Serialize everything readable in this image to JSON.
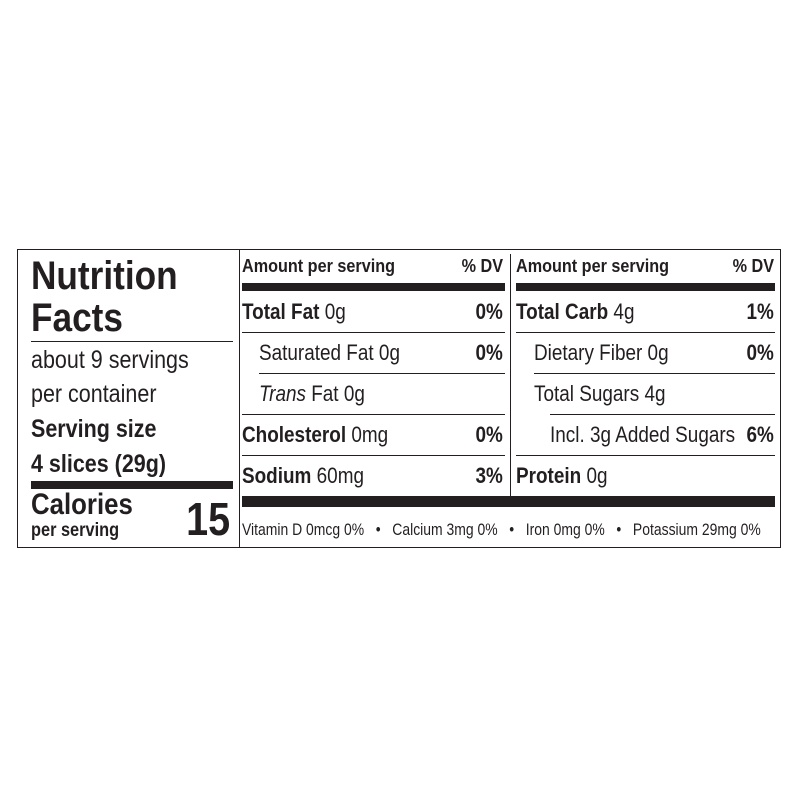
{
  "title_line1": "Nutrition",
  "title_line2": "Facts",
  "servings_line1": "about 9 servings",
  "servings_line2": "per container",
  "serving_size_label": "Serving size",
  "serving_size_value": "4 slices (29g)",
  "calories_label": "Calories",
  "calories_sub": "per serving",
  "calories_value": "15",
  "left_col": {
    "header_amount": "Amount per serving",
    "header_dv": "% DV",
    "rows": [
      {
        "label": "Total Fat",
        "amount": "0g",
        "dv": "0%"
      },
      {
        "label": "Saturated Fat",
        "amount": "0g",
        "dv": "0%"
      },
      {
        "label_italic": "Trans",
        "label": "Fat",
        "amount": "0g",
        "dv": ""
      },
      {
        "label": "Cholesterol",
        "amount": "0mg",
        "dv": "0%"
      },
      {
        "label": "Sodium",
        "amount": "60mg",
        "dv": "3%"
      }
    ]
  },
  "right_col": {
    "header_amount": "Amount per serving",
    "header_dv": "% DV",
    "rows": [
      {
        "label": "Total Carb",
        "amount": "4g",
        "dv": "1%"
      },
      {
        "label": "Dietary Fiber",
        "amount": "0g",
        "dv": "0%"
      },
      {
        "label": "Total Sugars",
        "amount": "4g",
        "dv": ""
      },
      {
        "label": "Incl. 3g Added Sugars",
        "amount": "",
        "dv": "6%"
      },
      {
        "label": "Protein",
        "amount": "0g",
        "dv": ""
      }
    ]
  },
  "footer": {
    "vitamin_d": "Vitamin D 0mcg 0%",
    "calcium": "Calcium 3mg 0%",
    "iron": "Iron 0mg 0%",
    "potassium": "Potassium 29mg 0%",
    "separator": "•"
  }
}
